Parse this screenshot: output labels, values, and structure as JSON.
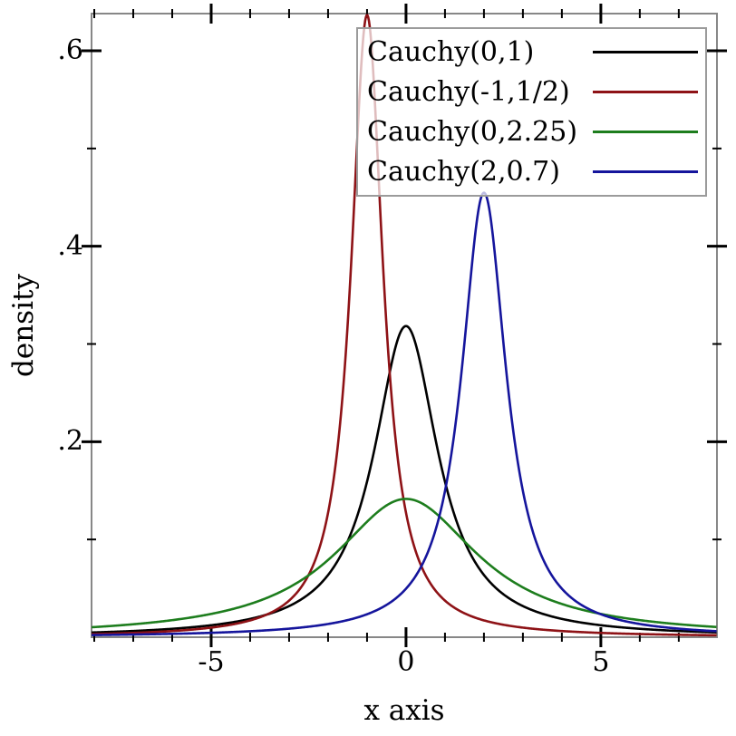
{
  "chart_data": {
    "type": "line",
    "title": "",
    "xlabel": "x axis",
    "ylabel": "density",
    "xlim": [
      -8.07,
      7.98
    ],
    "ylim": [
      0,
      0.638
    ],
    "grid": false,
    "legend_position": "top-right",
    "x_major_ticks": [
      {
        "value": -5,
        "label": "-5"
      },
      {
        "value": 0,
        "label": "0"
      },
      {
        "value": 5,
        "label": "5"
      }
    ],
    "x_minor_tick_step": 1,
    "y_major_ticks": [
      {
        "value": 0.2,
        "label": ".2"
      },
      {
        "value": 0.4,
        "label": ".4"
      },
      {
        "value": 0.6,
        "label": ".6"
      }
    ],
    "y_minor_tick_step": 0.1,
    "series": [
      {
        "name": "Cauchy(0,1)",
        "distribution": "cauchy",
        "location": 0,
        "scale": 1,
        "color": "#000000",
        "peak_x": 0,
        "peak_density": 0.318
      },
      {
        "name": "Cauchy(-1,1/2)",
        "distribution": "cauchy",
        "location": -1,
        "scale": 0.5,
        "color": "#8e1216",
        "peak_x": -1,
        "peak_density": 0.637
      },
      {
        "name": "Cauchy(0,2.25)",
        "distribution": "cauchy",
        "location": 0,
        "scale": 2.25,
        "color": "#1d7d1d",
        "peak_x": 0,
        "peak_density": 0.141
      },
      {
        "name": "Cauchy(2,0.7)",
        "distribution": "cauchy",
        "location": 2,
        "scale": 0.7,
        "color": "#15159c",
        "peak_x": 2,
        "peak_density": 0.455
      }
    ]
  },
  "colors": {
    "background": "#ffffff",
    "axis_frame": "#878787",
    "tick": "#000000",
    "text": "#000000",
    "legend_border": "#9b9b9b"
  }
}
